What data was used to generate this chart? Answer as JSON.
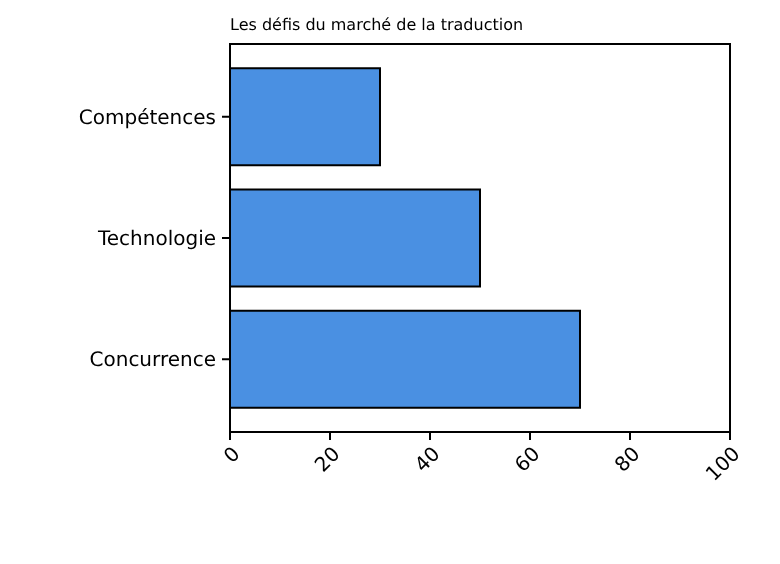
{
  "chart_data": {
    "type": "bar",
    "title": "Les défis du marché de la traduction",
    "orientation": "horizontal",
    "categories": [
      "Compétences",
      "Technologie",
      "Concurrence"
    ],
    "values": [
      30,
      50,
      70
    ],
    "color": "#4a90e2",
    "xlim": [
      0,
      100
    ],
    "xticks": [
      0,
      20,
      40,
      60,
      80,
      100
    ]
  }
}
